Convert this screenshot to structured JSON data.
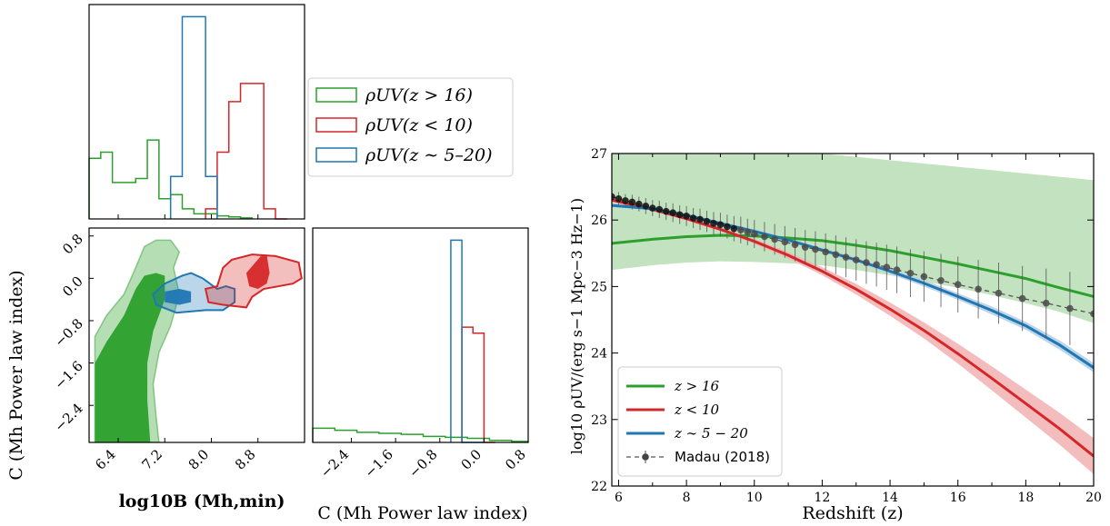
{
  "colors": {
    "green": "#2ca02c",
    "red": "#d62728",
    "blue": "#1f77b4",
    "gray": "#555555",
    "green_band": "#c3e2bf",
    "red_band": "#f2b6b7",
    "blue_band": "#b7d2e8"
  },
  "corner_plot": {
    "legend": [
      "ρUV(z > 16)",
      "ρUV(z < 10)",
      "ρUV(z ∼ 5–20)"
    ],
    "legend_icon": "histogram-step-patch",
    "joint": {
      "xlabel": "log10B (Mh,min)",
      "ylabel": "C (Mh Power law index)",
      "xlim": [
        5.9,
        9.6
      ],
      "ylim": [
        -3.1,
        0.95
      ],
      "xticks": [
        "6.4",
        "7.2",
        "8.0",
        "8.8"
      ],
      "yticks": [
        "0.8",
        "0.0",
        "−0.8",
        "−1.6",
        "−2.4"
      ],
      "contours": {
        "green_outer": [
          [
            6.0,
            -3.1
          ],
          [
            6.0,
            -1.1
          ],
          [
            6.2,
            -0.7
          ],
          [
            6.5,
            -0.3
          ],
          [
            6.7,
            0.2
          ],
          [
            6.85,
            0.6
          ],
          [
            7.05,
            0.72
          ],
          [
            7.3,
            0.72
          ],
          [
            7.45,
            0.5
          ],
          [
            7.35,
            0.2
          ],
          [
            7.45,
            -0.3
          ],
          [
            7.3,
            -0.9
          ],
          [
            7.1,
            -1.4
          ],
          [
            7.0,
            -2.0
          ],
          [
            7.05,
            -2.6
          ],
          [
            7.1,
            -3.1
          ]
        ],
        "green_inner": [
          [
            6.0,
            -3.1
          ],
          [
            6.0,
            -1.6
          ],
          [
            6.2,
            -1.2
          ],
          [
            6.5,
            -0.7
          ],
          [
            6.7,
            -0.2
          ],
          [
            6.85,
            0.05
          ],
          [
            7.05,
            0.1
          ],
          [
            7.2,
            0.05
          ],
          [
            7.2,
            -0.4
          ],
          [
            7.0,
            -1.0
          ],
          [
            6.9,
            -1.6
          ],
          [
            6.9,
            -2.3
          ],
          [
            6.95,
            -3.1
          ]
        ],
        "blue_outer": [
          [
            7.0,
            -0.3
          ],
          [
            7.2,
            -0.1
          ],
          [
            7.5,
            0.05
          ],
          [
            7.65,
            0.1
          ],
          [
            7.85,
            0.0
          ],
          [
            8.1,
            -0.2
          ],
          [
            8.25,
            -0.15
          ],
          [
            8.4,
            -0.2
          ],
          [
            8.4,
            -0.45
          ],
          [
            8.2,
            -0.6
          ],
          [
            7.9,
            -0.6
          ],
          [
            7.4,
            -0.65
          ],
          [
            7.05,
            -0.5
          ]
        ],
        "blue_inner": [
          [
            7.2,
            -0.25
          ],
          [
            7.45,
            -0.2
          ],
          [
            7.65,
            -0.25
          ],
          [
            7.65,
            -0.45
          ],
          [
            7.45,
            -0.5
          ],
          [
            7.2,
            -0.45
          ]
        ],
        "red_outer": [
          [
            8.2,
            0.2
          ],
          [
            8.35,
            0.35
          ],
          [
            8.7,
            0.45
          ],
          [
            9.1,
            0.42
          ],
          [
            9.5,
            0.3
          ],
          [
            9.55,
            0.0
          ],
          [
            9.4,
            -0.1
          ],
          [
            8.9,
            -0.2
          ],
          [
            8.7,
            -0.35
          ],
          [
            8.6,
            -0.55
          ],
          [
            8.2,
            -0.5
          ],
          [
            7.95,
            -0.45
          ],
          [
            7.9,
            -0.2
          ],
          [
            8.1,
            -0.15
          ]
        ],
        "red_inner": [
          [
            8.6,
            0.1
          ],
          [
            8.85,
            0.42
          ],
          [
            8.95,
            0.45
          ],
          [
            9.0,
            0.1
          ],
          [
            8.95,
            -0.1
          ],
          [
            8.8,
            -0.2
          ],
          [
            8.65,
            -0.15
          ]
        ]
      }
    },
    "top_hist": {
      "xlim": [
        5.9,
        9.6
      ],
      "ylim": [
        0,
        1.06
      ],
      "green": {
        "edges": [
          5.9,
          6.1,
          6.3,
          6.5,
          6.7,
          6.9,
          7.1,
          7.3,
          7.5,
          7.7,
          7.9,
          8.1,
          8.3,
          8.5,
          8.7
        ],
        "counts": [
          0.3,
          0.33,
          0.18,
          0.18,
          0.2,
          0.39,
          0.1,
          0.12,
          0.05,
          0.025,
          0.025,
          0.015,
          0.01,
          0.005
        ]
      },
      "red": {
        "edges": [
          7.9,
          8.1,
          8.3,
          8.5,
          8.7,
          8.9,
          9.1,
          9.3
        ],
        "counts": [
          0.05,
          0.33,
          0.58,
          0.67,
          0.67,
          0.05,
          0.0
        ]
      },
      "blue": {
        "edges": [
          7.3,
          7.5,
          7.7,
          7.9,
          8.1
        ],
        "counts": [
          0.21,
          1.0,
          1.0,
          0.21
        ]
      }
    },
    "right_hist": {
      "xlabel": "C (Mh Power law index)",
      "xlim": [
        -3.1,
        0.8
      ],
      "ylim": [
        0,
        1.06
      ],
      "xticks": [
        "−2.4",
        "−1.6",
        "−0.8",
        "0.0",
        "0.8"
      ],
      "green": {
        "edges": [
          -3.1,
          -2.7,
          -2.3,
          -1.9,
          -1.5,
          -1.1,
          -0.7,
          -0.3,
          0.1,
          0.5,
          0.8
        ],
        "counts": [
          0.07,
          0.06,
          0.05,
          0.045,
          0.04,
          0.03,
          0.025,
          0.02,
          0.01,
          0.005
        ]
      },
      "red": {
        "edges": [
          -0.4,
          -0.2,
          0.0,
          0.2
        ],
        "counts": [
          0.57,
          0.54,
          0.0
        ]
      },
      "blue": {
        "edges": [
          -0.6,
          -0.4,
          -0.2,
          0.0
        ],
        "counts": [
          1.0,
          0.0,
          0.0
        ]
      }
    }
  },
  "chart_data": {
    "type": "line",
    "xlabel": "Redshift (z)",
    "ylabel": "log10 ρUV/(erg s−1 Mpc−3 Hz−1)",
    "xlim": [
      5.8,
      20
    ],
    "ylim": [
      22,
      27
    ],
    "xticks": [
      "6",
      "8",
      "10",
      "12",
      "14",
      "16",
      "18",
      "20"
    ],
    "yticks": [
      "22",
      "23",
      "24",
      "25",
      "26",
      "27"
    ],
    "legend_position": "lower-left",
    "series": [
      {
        "name": "z > 16",
        "color_key": "green",
        "x": [
          5.8,
          7,
          8,
          9,
          10,
          11,
          12,
          13,
          14,
          15,
          16,
          17,
          18,
          19,
          20
        ],
        "y": [
          25.65,
          25.71,
          25.75,
          25.77,
          25.76,
          25.73,
          25.69,
          25.62,
          25.54,
          25.44,
          25.34,
          25.23,
          25.12,
          24.98,
          24.85
        ],
        "band_low": [
          25.25,
          25.32,
          25.36,
          25.38,
          25.37,
          25.35,
          25.32,
          25.25,
          25.17,
          25.08,
          24.98,
          24.87,
          24.75,
          24.62,
          24.45
        ],
        "band_high": [
          27.0,
          27.0,
          27.0,
          27.0,
          27.0,
          27.0,
          27.0,
          26.95,
          26.9,
          26.85,
          26.8,
          26.75,
          26.7,
          26.65,
          26.6
        ]
      },
      {
        "name": "z < 10",
        "color_key": "red",
        "x": [
          5.8,
          7,
          8,
          9,
          10,
          11,
          12,
          13,
          14,
          15,
          16,
          17,
          18,
          19,
          20
        ],
        "y": [
          26.3,
          26.16,
          26.02,
          25.86,
          25.68,
          25.47,
          25.23,
          24.96,
          24.66,
          24.34,
          23.99,
          23.62,
          23.24,
          22.86,
          22.45
        ],
        "band_half_width": [
          0.03,
          0.03,
          0.03,
          0.03,
          0.04,
          0.05,
          0.06,
          0.08,
          0.1,
          0.12,
          0.15,
          0.18,
          0.21,
          0.24,
          0.27
        ]
      },
      {
        "name": "z ∼ 5 − 20",
        "color_key": "blue",
        "x": [
          5.8,
          7,
          8,
          9,
          10,
          11,
          12,
          13,
          14,
          15,
          16,
          17,
          18,
          19,
          20
        ],
        "y": [
          26.22,
          26.17,
          26.07,
          25.95,
          25.83,
          25.7,
          25.55,
          25.4,
          25.23,
          25.05,
          24.85,
          24.64,
          24.41,
          24.12,
          23.78
        ],
        "band_half_width": [
          0.03,
          0.03,
          0.03,
          0.03,
          0.03,
          0.03,
          0.03,
          0.04,
          0.04,
          0.05,
          0.05,
          0.06,
          0.06,
          0.07,
          0.07
        ]
      },
      {
        "name": "Madau (2018)",
        "color_key": "gray",
        "style": "dashed-with-errorbars",
        "x": [
          5.8,
          6.0,
          6.2,
          6.4,
          6.6,
          6.8,
          7.0,
          7.2,
          7.4,
          7.6,
          7.8,
          8.0,
          8.2,
          8.4,
          8.6,
          8.8,
          9.0,
          9.2,
          9.4,
          9.6,
          9.8,
          10.0,
          10.3,
          10.6,
          10.9,
          11.2,
          11.5,
          11.8,
          12.1,
          12.4,
          12.7,
          13.0,
          13.3,
          13.6,
          13.9,
          14.2,
          14.6,
          15.0,
          15.5,
          16.0,
          16.6,
          17.2,
          17.9,
          18.6,
          19.3,
          20.0
        ],
        "y": [
          26.35,
          26.32,
          26.29,
          26.27,
          26.24,
          26.21,
          26.18,
          26.16,
          26.13,
          26.11,
          26.08,
          26.06,
          26.03,
          26.01,
          25.98,
          25.95,
          25.93,
          25.9,
          25.87,
          25.85,
          25.82,
          25.79,
          25.75,
          25.71,
          25.67,
          25.63,
          25.59,
          25.56,
          25.52,
          25.48,
          25.44,
          25.4,
          25.36,
          25.33,
          25.29,
          25.25,
          25.2,
          25.15,
          25.09,
          25.03,
          24.96,
          24.9,
          24.82,
          24.75,
          24.67,
          24.59
        ],
        "yerr": [
          0.1,
          0.1,
          0.1,
          0.11,
          0.11,
          0.12,
          0.12,
          0.13,
          0.13,
          0.14,
          0.14,
          0.15,
          0.15,
          0.16,
          0.16,
          0.17,
          0.18,
          0.18,
          0.19,
          0.2,
          0.2,
          0.21,
          0.22,
          0.23,
          0.24,
          0.25,
          0.26,
          0.27,
          0.28,
          0.29,
          0.3,
          0.31,
          0.32,
          0.33,
          0.34,
          0.35,
          0.36,
          0.38,
          0.4,
          0.42,
          0.44,
          0.46,
          0.49,
          0.52,
          0.55,
          0.58
        ]
      }
    ]
  }
}
